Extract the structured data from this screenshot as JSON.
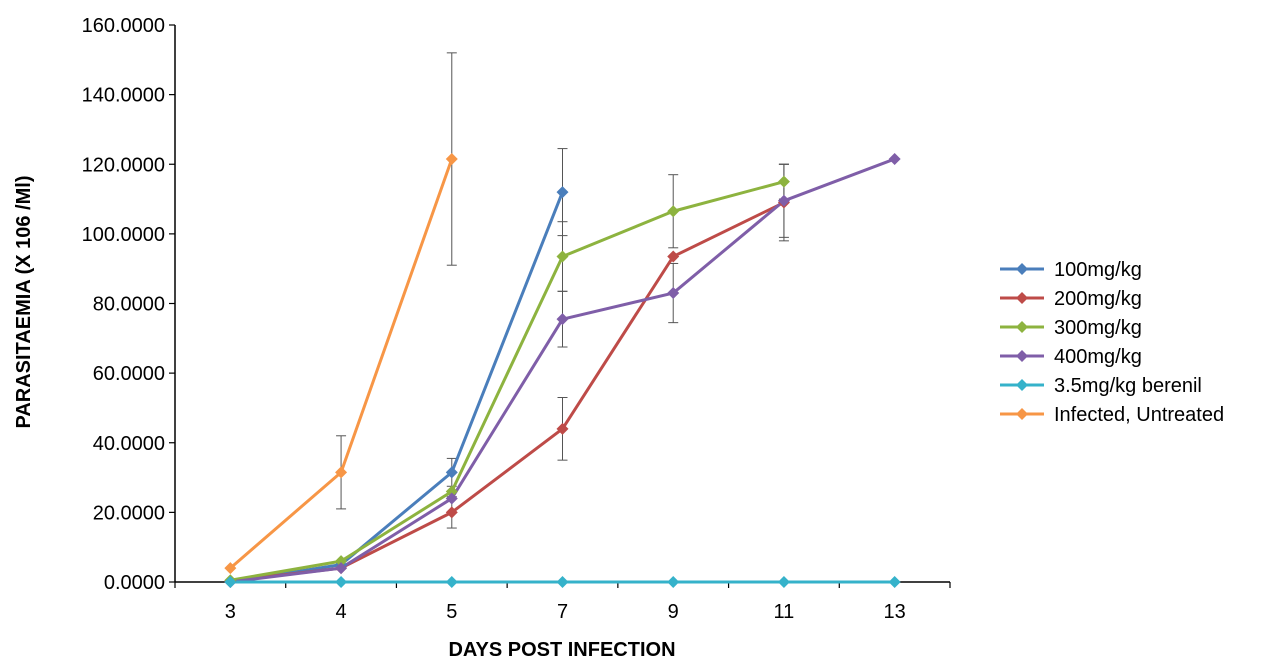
{
  "chart_data": {
    "type": "line",
    "title": "",
    "xlabel": "DAYS POST INFECTION",
    "ylabel": "PARASITAEMIA (X 106 /Ml)",
    "categories": [
      "3",
      "4",
      "5",
      "7",
      "9",
      "11",
      "13"
    ],
    "ylim": [
      0,
      160
    ],
    "yticks": [
      "0.0000",
      "20.0000",
      "40.0000",
      "60.0000",
      "80.0000",
      "100.0000",
      "120.0000",
      "140.0000",
      "160.0000"
    ],
    "grid": false,
    "legend_position": "right",
    "series": [
      {
        "name": "100mg/kg",
        "color": "#4a7ebb",
        "values": [
          0,
          5,
          31.5,
          112,
          null,
          null,
          null
        ],
        "errors": [
          0,
          0,
          4,
          12.5,
          null,
          null,
          null
        ]
      },
      {
        "name": "200mg/kg",
        "color": "#be4b48",
        "values": [
          0.3,
          4,
          20,
          44,
          93.5,
          109,
          null
        ],
        "errors": [
          0,
          0,
          4.5,
          9,
          0,
          11,
          null
        ]
      },
      {
        "name": "300mg/kg",
        "color": "#8db33f",
        "values": [
          0.5,
          6,
          26,
          93.5,
          106.5,
          115,
          null
        ],
        "errors": [
          0,
          0,
          0,
          10,
          10.5,
          5,
          null
        ]
      },
      {
        "name": "400mg/kg",
        "color": "#7f5ea8",
        "values": [
          0,
          4,
          24,
          75.5,
          83,
          109.5,
          121.5
        ],
        "errors": [
          0,
          0,
          0,
          8,
          8.5,
          10.5,
          0
        ]
      },
      {
        "name": "3.5mg/kg berenil",
        "color": "#35b2ca",
        "values": [
          0,
          0,
          0,
          0,
          0,
          0,
          0
        ],
        "errors": [
          0,
          0,
          0,
          0,
          0,
          0,
          0
        ]
      },
      {
        "name": "Infected, Untreated",
        "color": "#f79646",
        "values": [
          4,
          31.5,
          121.5,
          null,
          null,
          null,
          null
        ],
        "errors": [
          0,
          10.5,
          30.5,
          null,
          null,
          null,
          null
        ]
      }
    ]
  }
}
